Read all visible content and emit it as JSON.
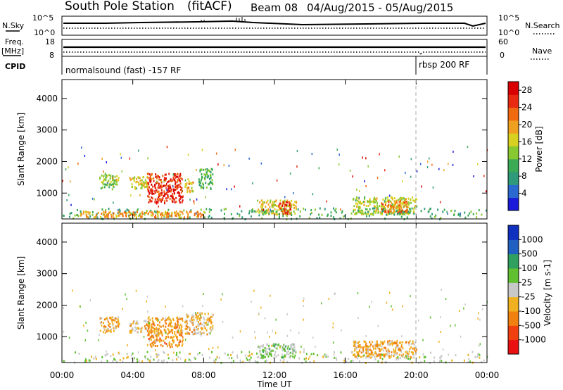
{
  "header": {
    "station": "South Pole Station",
    "mode": "(fitACF)",
    "beam": "Beam 08",
    "date_range": "04/Aug/2015 - 05/Aug/2015"
  },
  "summary": {
    "nsky_label": "N.Sky",
    "nsky_ticks": [
      "10^5",
      "10^0"
    ],
    "nsearch_label": "N.Search",
    "nsearch_ticks": [
      "10^5",
      "10^0"
    ],
    "freq_label_line1": "Freq.",
    "freq_label_line2": "[MHz]",
    "freq_ticks": [
      "18",
      "8"
    ],
    "nave_label": "Nave",
    "nave_ticks": [
      "60",
      "0"
    ],
    "cpid_label": "CPID",
    "cpid_segments": [
      {
        "label": "normalsound (fast) -157 RF",
        "start_hour": 0
      },
      {
        "label": "rbsp 200 RF",
        "start_hour": 20.0
      }
    ]
  },
  "chart_data": [
    {
      "type": "heatmap",
      "title": "",
      "xlabel": "Time UT",
      "ylabel": "Slant Range [km]",
      "x_range_hours": [
        0,
        24
      ],
      "x_ticks": [
        "00:00",
        "04:00",
        "08:00",
        "12:00",
        "16:00",
        "20:00",
        "00:00"
      ],
      "y_ticks": [
        "1000",
        "2000",
        "3000",
        "4000"
      ],
      "ylim": [
        180,
        4600
      ],
      "colorbar_label": "Power [dB]",
      "colorbar_ticks": [
        "4",
        "8",
        "12",
        "16",
        "20",
        "24",
        "28"
      ],
      "value_range": [
        0,
        30
      ],
      "colors": [
        "#1a1ad8",
        "#2a6ad0",
        "#2f9a7a",
        "#3aaa55",
        "#88c830",
        "#d8d020",
        "#f0a020",
        "#f06a10",
        "#e82a10",
        "#d80000"
      ],
      "clusters": [
        {
          "t0": 2.1,
          "t1": 3.0,
          "r0": 1150,
          "r1": 1650,
          "v": 13
        },
        {
          "t0": 3.0,
          "t1": 3.2,
          "r0": 1300,
          "r1": 1600,
          "v": 15
        },
        {
          "t0": 3.8,
          "t1": 4.8,
          "r0": 1150,
          "r1": 1550,
          "v": 16
        },
        {
          "t0": 4.8,
          "t1": 6.8,
          "r0": 700,
          "r1": 1650,
          "v": 26
        },
        {
          "t0": 6.9,
          "t1": 7.4,
          "r0": 1050,
          "r1": 1500,
          "v": 18
        },
        {
          "t0": 7.7,
          "t1": 8.5,
          "r0": 1150,
          "r1": 1800,
          "v": 11
        },
        {
          "t0": 11.0,
          "t1": 13.2,
          "r0": 350,
          "r1": 800,
          "v": 17
        },
        {
          "t0": 12.2,
          "t1": 12.9,
          "r0": 350,
          "r1": 750,
          "v": 26
        },
        {
          "t0": 16.4,
          "t1": 20.0,
          "r0": 350,
          "r1": 900,
          "v": 15
        },
        {
          "t0": 18.0,
          "t1": 19.5,
          "r0": 400,
          "r1": 800,
          "v": 22
        },
        {
          "t0": 0.0,
          "t1": 24.0,
          "r0": 200,
          "r1": 550,
          "v": 10
        },
        {
          "t0": 1.0,
          "t1": 8.0,
          "r0": 250,
          "r1": 450,
          "v": 20
        }
      ]
    },
    {
      "type": "heatmap",
      "title": "",
      "xlabel": "Time UT",
      "ylabel": "Slant Range [km]",
      "x_range_hours": [
        0,
        24
      ],
      "x_ticks": [
        "00:00",
        "04:00",
        "08:00",
        "12:00",
        "16:00",
        "20:00",
        "00:00"
      ],
      "y_ticks": [
        "1000",
        "2000",
        "3000",
        "4000"
      ],
      "ylim": [
        180,
        4600
      ],
      "colorbar_label": "Velocity [m s-1]",
      "colorbar_ticks": [
        "1000",
        "500",
        "100",
        "25",
        "-25",
        "-100",
        "-500",
        "-1000"
      ],
      "value_range": [
        -1200,
        1200
      ],
      "colors": [
        "#e81010",
        "#f04010",
        "#f08010",
        "#f0b020",
        "#c8c8c8",
        "#60c030",
        "#30a060",
        "#2060c0",
        "#1030c0"
      ],
      "clusters": [
        {
          "t0": 2.1,
          "t1": 3.2,
          "r0": 1150,
          "r1": 1650,
          "v": -300
        },
        {
          "t0": 3.8,
          "t1": 4.8,
          "r0": 1150,
          "r1": 1550,
          "v": -200
        },
        {
          "t0": 4.8,
          "t1": 6.8,
          "r0": 700,
          "r1": 1650,
          "v": -400
        },
        {
          "t0": 6.9,
          "t1": 8.5,
          "r0": 1100,
          "r1": 1800,
          "v": -250
        },
        {
          "t0": 11.0,
          "t1": 13.2,
          "r0": 350,
          "r1": 800,
          "v": 150
        },
        {
          "t0": 16.4,
          "t1": 20.0,
          "r0": 350,
          "r1": 900,
          "v": -300
        },
        {
          "t0": 0.0,
          "t1": 24.0,
          "r0": 200,
          "r1": 550,
          "v": 0
        }
      ]
    }
  ]
}
